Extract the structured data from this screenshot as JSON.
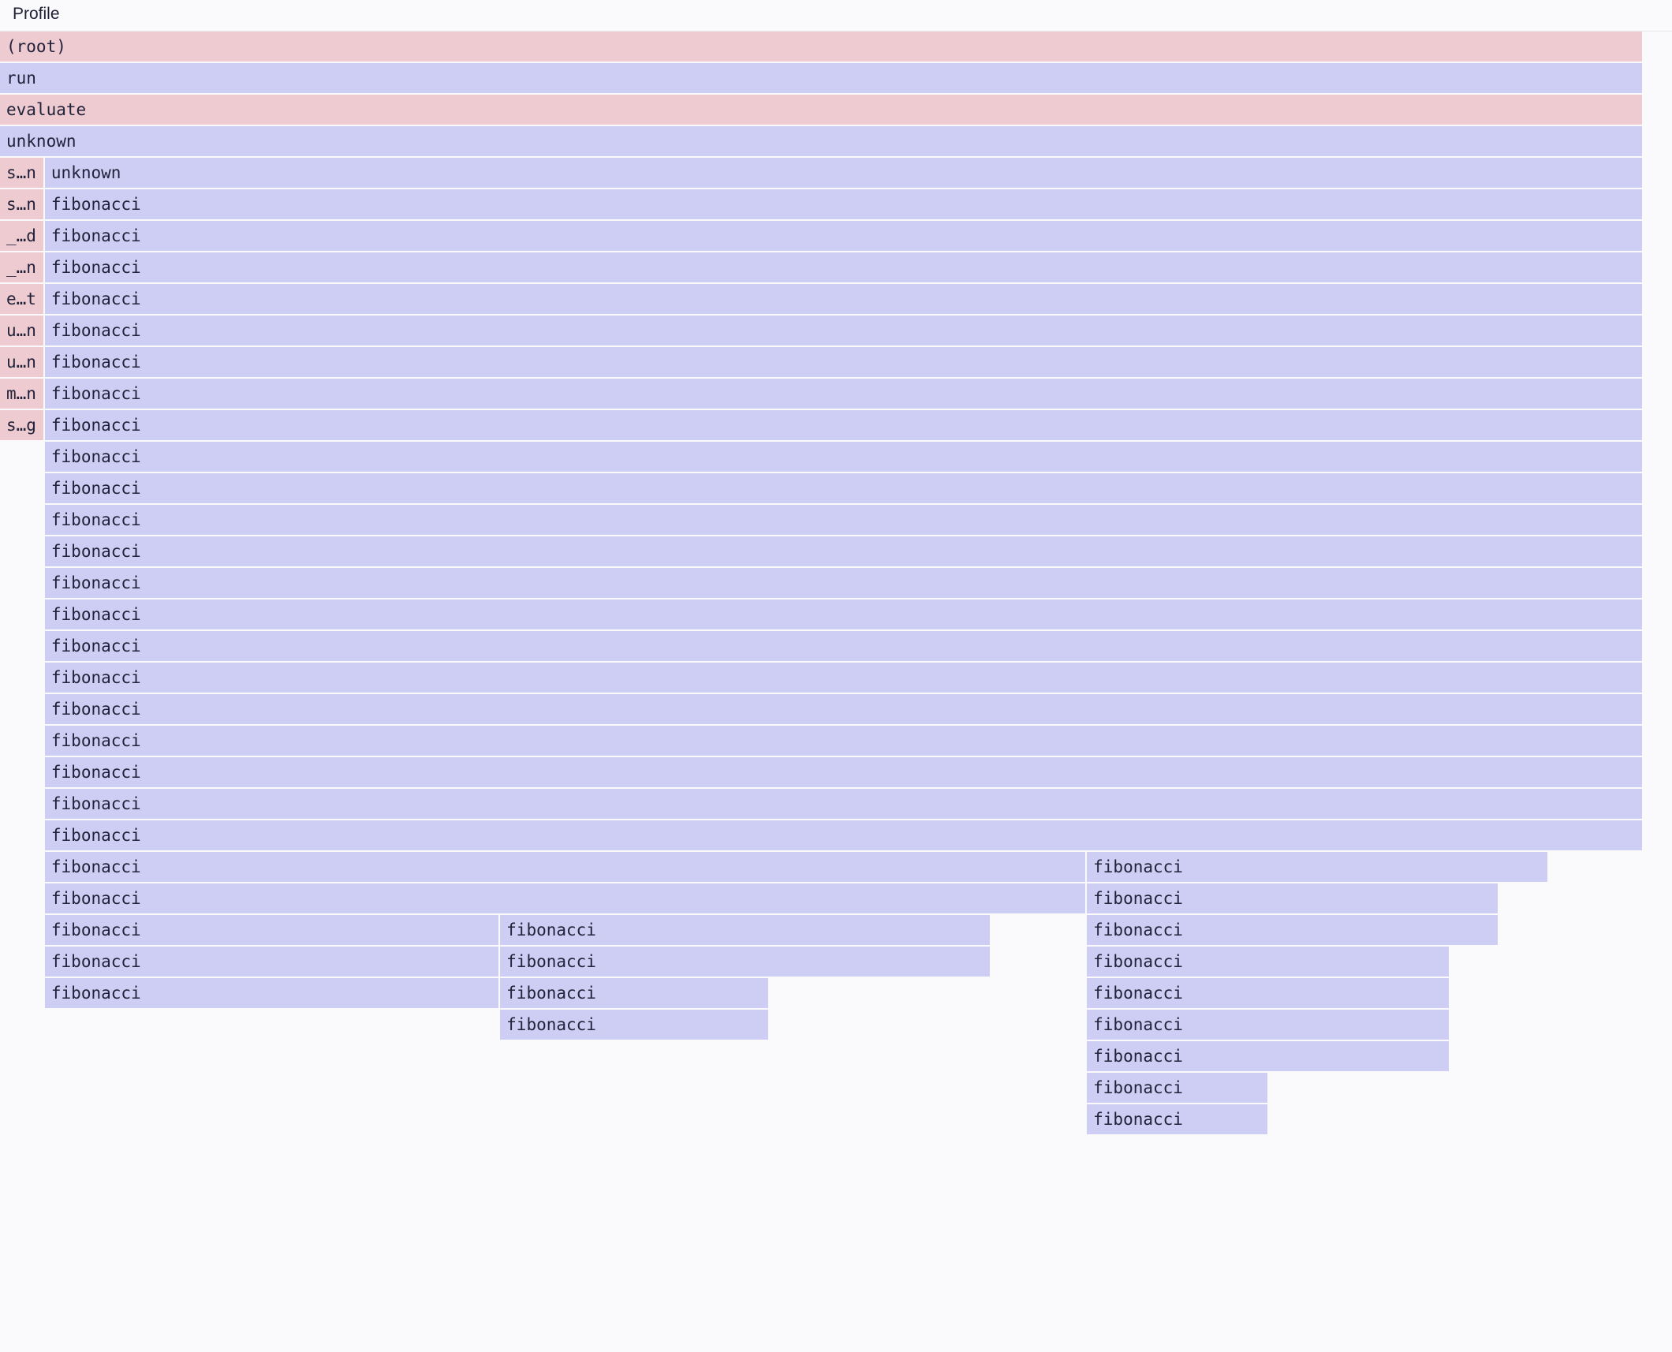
{
  "header": {
    "title": "Profile"
  },
  "colors": {
    "default": "#cecdf3",
    "pink": "#eecbd0",
    "text": "#22223a",
    "background": "#fafafc"
  },
  "flamegraph": [
    {
      "name": "(root)",
      "share": 100,
      "parent": -1,
      "color": "pink"
    },
    {
      "name": "run",
      "share": 100,
      "parent": 0
    },
    {
      "name": "evaluate",
      "share": 100,
      "parent": 1,
      "color": "pink"
    },
    {
      "name": "unknown",
      "share": 100,
      "parent": 2
    },
    {
      "name": "s…n",
      "share": 2.73,
      "parent": 3,
      "color": "pink"
    },
    {
      "name": "s…n",
      "share": 2.73,
      "parent": 4,
      "color": "pink"
    },
    {
      "name": "_…d",
      "share": 2.73,
      "parent": 5,
      "color": "pink"
    },
    {
      "name": "_…n",
      "share": 2.73,
      "parent": 6,
      "color": "pink"
    },
    {
      "name": "e…t",
      "share": 2.73,
      "parent": 7,
      "color": "pink"
    },
    {
      "name": "u…n",
      "share": 2.73,
      "parent": 8,
      "color": "pink"
    },
    {
      "name": "u…n",
      "share": 2.73,
      "parent": 9,
      "color": "pink"
    },
    {
      "name": "m…n",
      "share": 2.73,
      "parent": 10,
      "color": "pink"
    },
    {
      "name": "s…g",
      "share": 2.73,
      "parent": 11,
      "color": "pink"
    },
    {
      "name": "unknown",
      "share": 97.27,
      "parent": 3
    },
    {
      "name": "fibonacci",
      "share": 97.27,
      "parent": 13
    },
    {
      "name": "fibonacci",
      "share": 97.27,
      "parent": 14
    },
    {
      "name": "fibonacci",
      "share": 97.27,
      "parent": 15
    },
    {
      "name": "fibonacci",
      "share": 97.27,
      "parent": 16
    },
    {
      "name": "fibonacci",
      "share": 97.27,
      "parent": 17
    },
    {
      "name": "fibonacci",
      "share": 97.27,
      "parent": 18
    },
    {
      "name": "fibonacci",
      "share": 97.27,
      "parent": 19
    },
    {
      "name": "fibonacci",
      "share": 97.27,
      "parent": 20
    },
    {
      "name": "fibonacci",
      "share": 97.27,
      "parent": 21
    },
    {
      "name": "fibonacci",
      "share": 97.27,
      "parent": 22
    },
    {
      "name": "fibonacci",
      "share": 97.27,
      "parent": 23
    },
    {
      "name": "fibonacci",
      "share": 97.27,
      "parent": 24
    },
    {
      "name": "fibonacci",
      "share": 97.27,
      "parent": 25
    },
    {
      "name": "fibonacci",
      "share": 97.27,
      "parent": 26
    },
    {
      "name": "fibonacci",
      "share": 97.27,
      "parent": 27
    },
    {
      "name": "fibonacci",
      "share": 97.27,
      "parent": 28
    },
    {
      "name": "fibonacci",
      "share": 97.27,
      "parent": 29
    },
    {
      "name": "fibonacci",
      "share": 97.27,
      "parent": 30
    },
    {
      "name": "fibonacci",
      "share": 97.27,
      "parent": 31
    },
    {
      "name": "fibonacci",
      "share": 97.27,
      "parent": 32
    },
    {
      "name": "fibonacci",
      "share": 97.27,
      "parent": 33
    },
    {
      "name": "fibonacci",
      "share": 63.4,
      "parent": 34
    },
    {
      "name": "fibonacci",
      "share": 63.4,
      "parent": 35
    },
    {
      "name": "fibonacci",
      "share": 27.7,
      "parent": 36
    },
    {
      "name": "fibonacci",
      "share": 27.7,
      "parent": 37
    },
    {
      "name": "fibonacci",
      "share": 27.7,
      "parent": 38
    },
    {
      "name": "fibonacci",
      "share": 29.9,
      "parent": 36
    },
    {
      "name": "fibonacci",
      "share": 29.9,
      "parent": 40
    },
    {
      "name": "fibonacci",
      "share": 16.4,
      "parent": 41
    },
    {
      "name": "fibonacci",
      "share": 16.4,
      "parent": 42
    },
    {
      "name": "fibonacci",
      "share": 28.1,
      "parent": 34
    },
    {
      "name": "fibonacci",
      "share": 25.1,
      "parent": 44
    },
    {
      "name": "fibonacci",
      "share": 25.1,
      "parent": 45
    },
    {
      "name": "fibonacci",
      "share": 22.1,
      "parent": 46
    },
    {
      "name": "fibonacci",
      "share": 22.1,
      "parent": 47
    },
    {
      "name": "fibonacci",
      "share": 22.1,
      "parent": 48
    },
    {
      "name": "fibonacci",
      "share": 22.1,
      "parent": 49
    },
    {
      "name": "fibonacci",
      "share": 11.1,
      "parent": 50
    },
    {
      "name": "fibonacci",
      "share": 11.1,
      "parent": 51
    }
  ]
}
